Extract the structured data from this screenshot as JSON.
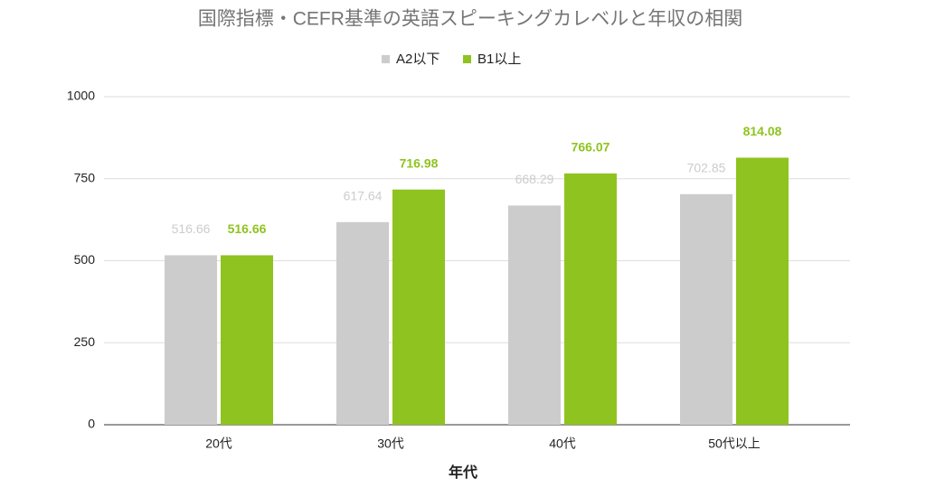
{
  "chart_data": {
    "type": "bar",
    "title": "国際指標・CEFR基準の英語スピーキングカレベルと年収の相関",
    "x_label": "年代",
    "categories": [
      "20代",
      "30代",
      "40代",
      "50代以上"
    ],
    "series": [
      {
        "name": "A2以下",
        "color": "#cccccc",
        "label_color": "#cccccc",
        "values": [
          516.66,
          617.64,
          668.29,
          702.85
        ]
      },
      {
        "name": "B1以上",
        "color": "#8fc31f",
        "label_color": "#8fc31f",
        "values": [
          516.66,
          716.98,
          766.07,
          814.08
        ]
      }
    ],
    "ylim": [
      0,
      1000
    ],
    "yticks": [
      0,
      250,
      500,
      750,
      1000
    ],
    "grid": true
  }
}
